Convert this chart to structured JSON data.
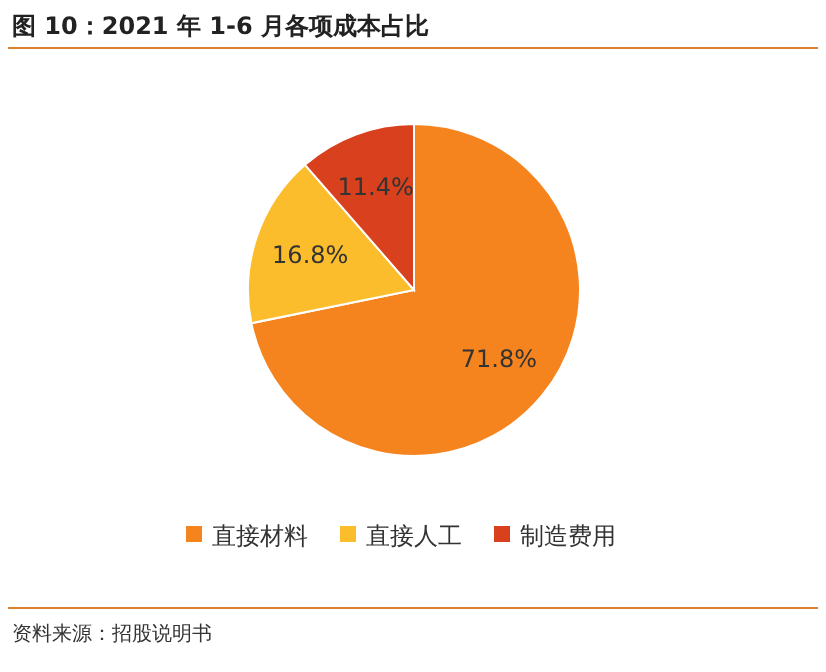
{
  "chart_data": {
    "type": "pie",
    "title": "图 10：2021 年 1-6 月各项成本占比",
    "categories": [
      "直接材料",
      "直接人工",
      "制造费用"
    ],
    "values": [
      71.8,
      16.8,
      11.4
    ],
    "colors": [
      "#f5841f",
      "#fbbd2c",
      "#d9401e"
    ],
    "value_labels": [
      "71.8%",
      "16.8%",
      "11.4%"
    ],
    "legend": "bottom",
    "annotations": [
      "资料来源：招股说明书"
    ]
  }
}
